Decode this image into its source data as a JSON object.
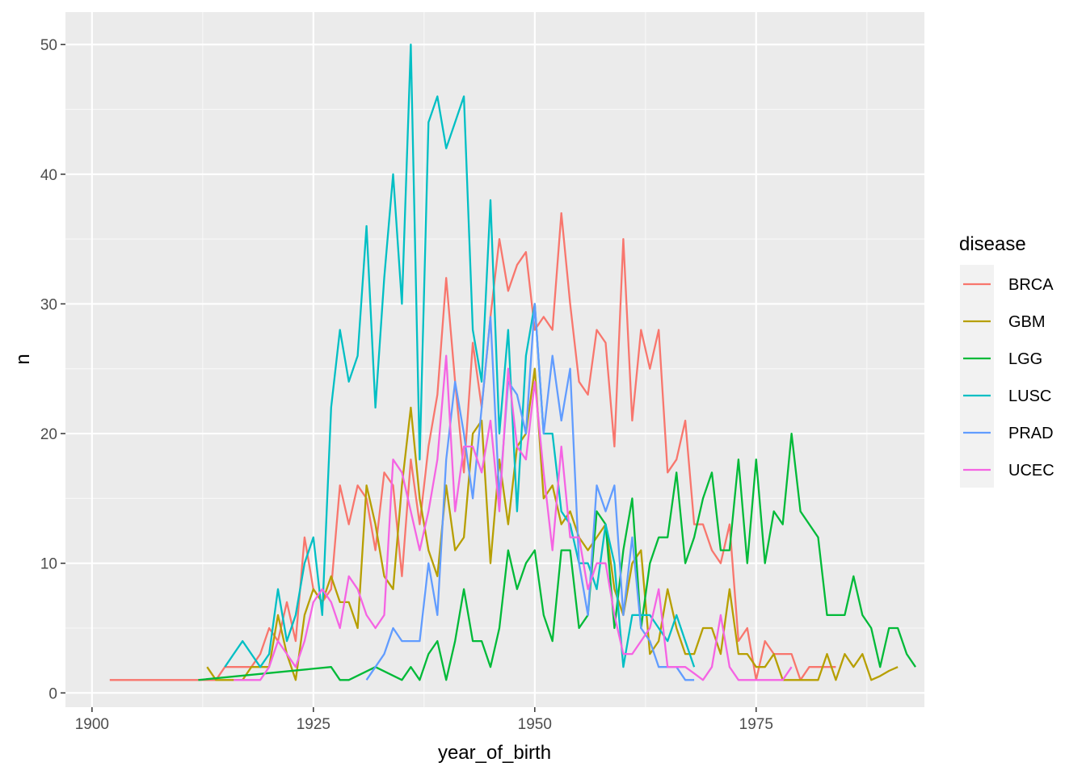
{
  "chart_data": {
    "type": "line",
    "xlabel": "year_of_birth",
    "ylabel": "n",
    "xlim": [
      1897,
      1994
    ],
    "ylim": [
      -1.1,
      52.5
    ],
    "x_ticks": [
      1900,
      1925,
      1950,
      1975
    ],
    "y_ticks": [
      0,
      10,
      20,
      30,
      40,
      50
    ],
    "grid": true,
    "legend": {
      "title": "disease",
      "position": "right"
    },
    "series": [
      {
        "name": "BRCA",
        "color": "#F8766D",
        "x": [
          1902,
          1903,
          1904,
          1905,
          1906,
          1907,
          1908,
          1909,
          1910,
          1911,
          1912,
          1913,
          1914,
          1915,
          1916,
          1917,
          1918,
          1919,
          1920,
          1921,
          1922,
          1923,
          1924,
          1925,
          1926,
          1927,
          1928,
          1929,
          1930,
          1931,
          1932,
          1933,
          1934,
          1935,
          1936,
          1937,
          1938,
          1939,
          1940,
          1941,
          1942,
          1943,
          1944,
          1945,
          1946,
          1947,
          1948,
          1949,
          1950,
          1951,
          1952,
          1953,
          1954,
          1955,
          1956,
          1957,
          1958,
          1959,
          1960,
          1961,
          1962,
          1963,
          1964,
          1965,
          1966,
          1967,
          1968,
          1969,
          1970,
          1971,
          1972,
          1973,
          1974,
          1975,
          1976,
          1977,
          1978,
          1979,
          1980,
          1981,
          1982,
          1983,
          1984
        ],
        "y": [
          1,
          1,
          1,
          1,
          1,
          1,
          1,
          1,
          1,
          1,
          1,
          1,
          1,
          2,
          2,
          2,
          2,
          3,
          5,
          4,
          7,
          4,
          12,
          8,
          7,
          8,
          16,
          13,
          16,
          15,
          11,
          17,
          16,
          9,
          18,
          13,
          19,
          23,
          32,
          24,
          17,
          27,
          22,
          29,
          35,
          31,
          33,
          34,
          28,
          29,
          28,
          37,
          30,
          24,
          23,
          28,
          27,
          19,
          35,
          21,
          28,
          25,
          28,
          17,
          18,
          21,
          13,
          13,
          11,
          10,
          13,
          4,
          5,
          1,
          4,
          3,
          3,
          3,
          1,
          2,
          2,
          2,
          2
        ]
      },
      {
        "name": "GBM",
        "color": "#B79F00",
        "x": [
          1913,
          1914,
          1915,
          1916,
          1917,
          1918,
          1919,
          1920,
          1921,
          1922,
          1923,
          1924,
          1925,
          1926,
          1927,
          1928,
          1929,
          1930,
          1931,
          1932,
          1933,
          1934,
          1935,
          1936,
          1937,
          1938,
          1939,
          1940,
          1941,
          1942,
          1943,
          1944,
          1945,
          1946,
          1947,
          1948,
          1949,
          1950,
          1951,
          1952,
          1953,
          1954,
          1955,
          1956,
          1957,
          1958,
          1959,
          1960,
          1961,
          1962,
          1963,
          1964,
          1965,
          1966,
          1967,
          1968,
          1969,
          1970,
          1971,
          1972,
          1973,
          1974,
          1975,
          1976,
          1977,
          1978,
          1979,
          1980,
          1981,
          1982,
          1983,
          1984,
          1985,
          1986,
          1987,
          1988,
          1989,
          1990,
          1991
        ],
        "y": [
          2,
          1,
          1,
          1,
          1,
          2,
          2,
          2,
          6,
          3,
          1,
          6,
          8,
          7,
          9,
          7,
          7,
          5,
          16,
          13,
          9,
          8,
          16,
          22,
          15,
          11,
          9,
          16,
          11,
          12,
          20,
          21,
          10,
          18,
          13,
          19,
          20,
          25,
          15,
          16,
          13,
          14,
          12,
          11,
          12,
          13,
          8,
          6,
          10,
          11,
          3,
          4,
          8,
          5,
          3,
          3,
          5,
          5,
          3,
          8,
          3,
          3,
          2,
          2,
          3,
          1,
          1,
          1,
          1,
          1,
          3,
          1,
          3,
          2,
          3,
          1,
          1.3,
          1.7,
          2
        ]
      },
      {
        "name": "LGG",
        "color": "#00BA38",
        "x": [
          1912,
          1927,
          1928,
          1929,
          1932,
          1935,
          1936,
          1937,
          1938,
          1939,
          1940,
          1941,
          1942,
          1943,
          1944,
          1945,
          1946,
          1947,
          1948,
          1949,
          1950,
          1951,
          1952,
          1953,
          1954,
          1955,
          1956,
          1957,
          1958,
          1959,
          1960,
          1961,
          1962,
          1963,
          1964,
          1965,
          1966,
          1967,
          1968,
          1969,
          1970,
          1971,
          1972,
          1973,
          1974,
          1975,
          1976,
          1977,
          1978,
          1979,
          1980,
          1982,
          1983,
          1984,
          1985,
          1986,
          1987,
          1988,
          1989,
          1990,
          1991,
          1992,
          1993
        ],
        "y": [
          1,
          2,
          1,
          1,
          2,
          1,
          2,
          1,
          3,
          4,
          1,
          4,
          8,
          4,
          4,
          2,
          5,
          11,
          8,
          10,
          11,
          6,
          4,
          11,
          11,
          5,
          6,
          14,
          13,
          5,
          11,
          15,
          5,
          10,
          12,
          12,
          17,
          10,
          12,
          15,
          17,
          11,
          11,
          18,
          10,
          18,
          10,
          14,
          13,
          20,
          14,
          12,
          6,
          6,
          6,
          9,
          6,
          5,
          2,
          5,
          5,
          3,
          2
        ]
      },
      {
        "name": "LUSC",
        "color": "#00BFC4",
        "x": [
          1915,
          1916,
          1917,
          1918,
          1919,
          1920,
          1921,
          1922,
          1923,
          1924,
          1925,
          1926,
          1927,
          1928,
          1929,
          1930,
          1931,
          1932,
          1933,
          1934,
          1935,
          1936,
          1937,
          1938,
          1939,
          1940,
          1941,
          1942,
          1943,
          1944,
          1945,
          1946,
          1947,
          1948,
          1949,
          1950,
          1951,
          1952,
          1953,
          1954,
          1955,
          1956,
          1957,
          1958,
          1959,
          1960,
          1961,
          1962,
          1963,
          1964,
          1965,
          1966,
          1967,
          1968
        ],
        "y": [
          2,
          3,
          4,
          3,
          2,
          3,
          8,
          4,
          6,
          10,
          12,
          6,
          22,
          28,
          24,
          26,
          36,
          22,
          32,
          40,
          30,
          50,
          18,
          44,
          46,
          42,
          44,
          46,
          28,
          24,
          38,
          20,
          28,
          14,
          26,
          30,
          20,
          20,
          14,
          13,
          10,
          10,
          8,
          13,
          10,
          2,
          6,
          6,
          6,
          5,
          4,
          6,
          4,
          2
        ]
      },
      {
        "name": "PRAD",
        "color": "#619CFF",
        "x": [
          1931,
          1932,
          1933,
          1934,
          1935,
          1936,
          1937,
          1938,
          1939,
          1940,
          1941,
          1942,
          1943,
          1944,
          1945,
          1946,
          1947,
          1948,
          1949,
          1950,
          1951,
          1952,
          1953,
          1954,
          1955,
          1956,
          1957,
          1958,
          1959,
          1960,
          1961,
          1962,
          1963,
          1964,
          1965,
          1966,
          1967,
          1968
        ],
        "y": [
          1,
          2,
          3,
          5,
          4,
          4,
          4,
          10,
          6,
          18,
          24,
          20,
          15,
          22,
          29,
          15,
          24,
          23,
          20,
          30,
          20,
          26,
          21,
          25,
          10,
          6,
          16,
          14,
          16,
          6,
          12,
          5,
          4,
          2,
          2,
          2,
          1,
          1
        ]
      },
      {
        "name": "UCEC",
        "color": "#F564E3",
        "x": [
          1916,
          1917,
          1918,
          1919,
          1920,
          1921,
          1922,
          1923,
          1924,
          1925,
          1926,
          1927,
          1928,
          1929,
          1930,
          1931,
          1932,
          1933,
          1934,
          1935,
          1936,
          1937,
          1938,
          1939,
          1940,
          1941,
          1942,
          1943,
          1944,
          1945,
          1946,
          1947,
          1948,
          1949,
          1950,
          1951,
          1952,
          1953,
          1954,
          1955,
          1956,
          1957,
          1958,
          1959,
          1960,
          1961,
          1962,
          1963,
          1964,
          1965,
          1966,
          1967,
          1968,
          1969,
          1970,
          1971,
          1972,
          1973,
          1974,
          1975,
          1976,
          1977,
          1978,
          1979
        ],
        "y": [
          1,
          1,
          1,
          1,
          2,
          4,
          3,
          2,
          4,
          7,
          8,
          7,
          5,
          9,
          8,
          6,
          5,
          6,
          18,
          17,
          14,
          11,
          14,
          18,
          26,
          14,
          19,
          19,
          17,
          21,
          14,
          25,
          19,
          18,
          24,
          17,
          11,
          19,
          12,
          12,
          8,
          10,
          10,
          6,
          3,
          3,
          4,
          5,
          8,
          2,
          2,
          2,
          1.5,
          1,
          2,
          6,
          2,
          1,
          1,
          1,
          1,
          1,
          1,
          2
        ]
      }
    ]
  }
}
